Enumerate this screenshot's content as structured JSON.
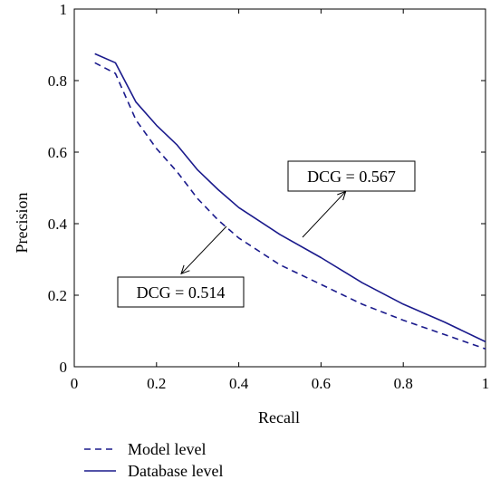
{
  "chart_data": {
    "type": "line",
    "title": "",
    "xlabel": "Recall",
    "ylabel": "Precision",
    "xlim": [
      0,
      1
    ],
    "ylim": [
      0,
      1
    ],
    "xticks": [
      0,
      0.2,
      0.4,
      0.6,
      0.8,
      1
    ],
    "yticks": [
      0,
      0.2,
      0.4,
      0.6,
      0.8,
      1
    ],
    "xtick_labels": [
      "0",
      "0.2",
      "0.4",
      "0.6",
      "0.8",
      "1"
    ],
    "ytick_labels": [
      "0",
      "0.2",
      "0.4",
      "0.6",
      "0.8",
      "1"
    ],
    "grid": false,
    "legend_position": "bottom-left, below plot",
    "series": [
      {
        "name": "Model level",
        "style": "dashed",
        "color": "#1a1a8c",
        "x": [
          0.05,
          0.1,
          0.15,
          0.2,
          0.25,
          0.3,
          0.35,
          0.4,
          0.5,
          0.6,
          0.7,
          0.8,
          0.9,
          1.0
        ],
        "y": [
          0.85,
          0.82,
          0.69,
          0.61,
          0.545,
          0.47,
          0.41,
          0.36,
          0.285,
          0.23,
          0.175,
          0.13,
          0.09,
          0.05
        ]
      },
      {
        "name": "Database level",
        "style": "solid",
        "color": "#1a1a8c",
        "x": [
          0.05,
          0.1,
          0.15,
          0.2,
          0.25,
          0.3,
          0.35,
          0.4,
          0.5,
          0.6,
          0.7,
          0.8,
          0.9,
          1.0
        ],
        "y": [
          0.875,
          0.85,
          0.74,
          0.675,
          0.62,
          0.55,
          0.495,
          0.445,
          0.37,
          0.305,
          0.235,
          0.175,
          0.125,
          0.07
        ]
      }
    ],
    "annotations": [
      {
        "text": "DCG = 0.567",
        "series": "Database level",
        "arrow_to": [
          0.66,
          0.49
        ]
      },
      {
        "text": "DCG = 0.514",
        "series": "Model level",
        "arrow_to": [
          0.26,
          0.26
        ]
      }
    ]
  }
}
